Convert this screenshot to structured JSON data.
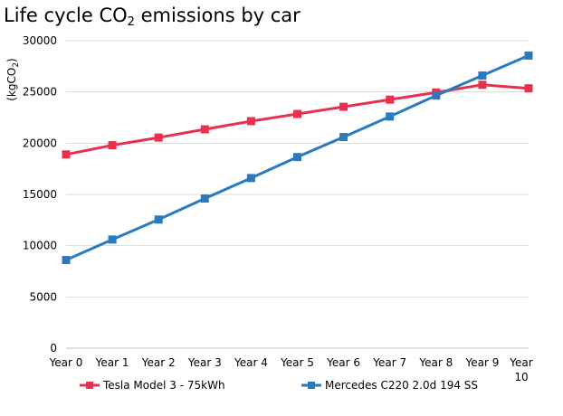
{
  "chart_data": {
    "type": "line",
    "title": {
      "prefix": "Life cycle CO",
      "subscript": "2",
      "suffix": " emissions by car"
    },
    "ylabel": {
      "prefix": "(kgCO",
      "subscript": "2",
      "suffix": ")"
    },
    "xlabel": "",
    "ylim": [
      0,
      30000
    ],
    "yticks": [
      "0",
      "5000",
      "10000",
      "15000",
      "20000",
      "25000",
      "30000"
    ],
    "categories": [
      "Year 0",
      "Year 1",
      "Year 2",
      "Year 3",
      "Year 4",
      "Year 5",
      "Year 6",
      "Year 7",
      "Year 8",
      "Year 9",
      "Year 10"
    ],
    "grid": true,
    "legend_position": "bottom",
    "series": [
      {
        "name": "Tesla Model 3 - 75kWh",
        "color": "#e8304f",
        "marker": "square",
        "values": [
          18900,
          19800,
          20550,
          21350,
          22150,
          22850,
          23550,
          24250,
          24950,
          25700,
          25350
        ]
      },
      {
        "name": "Mercedes C220 2.0d 194 SS",
        "color": "#2a7abf",
        "marker": "square",
        "values": [
          8600,
          10600,
          12550,
          14600,
          16600,
          18650,
          20600,
          22600,
          24650,
          26600,
          28550
        ]
      }
    ]
  }
}
